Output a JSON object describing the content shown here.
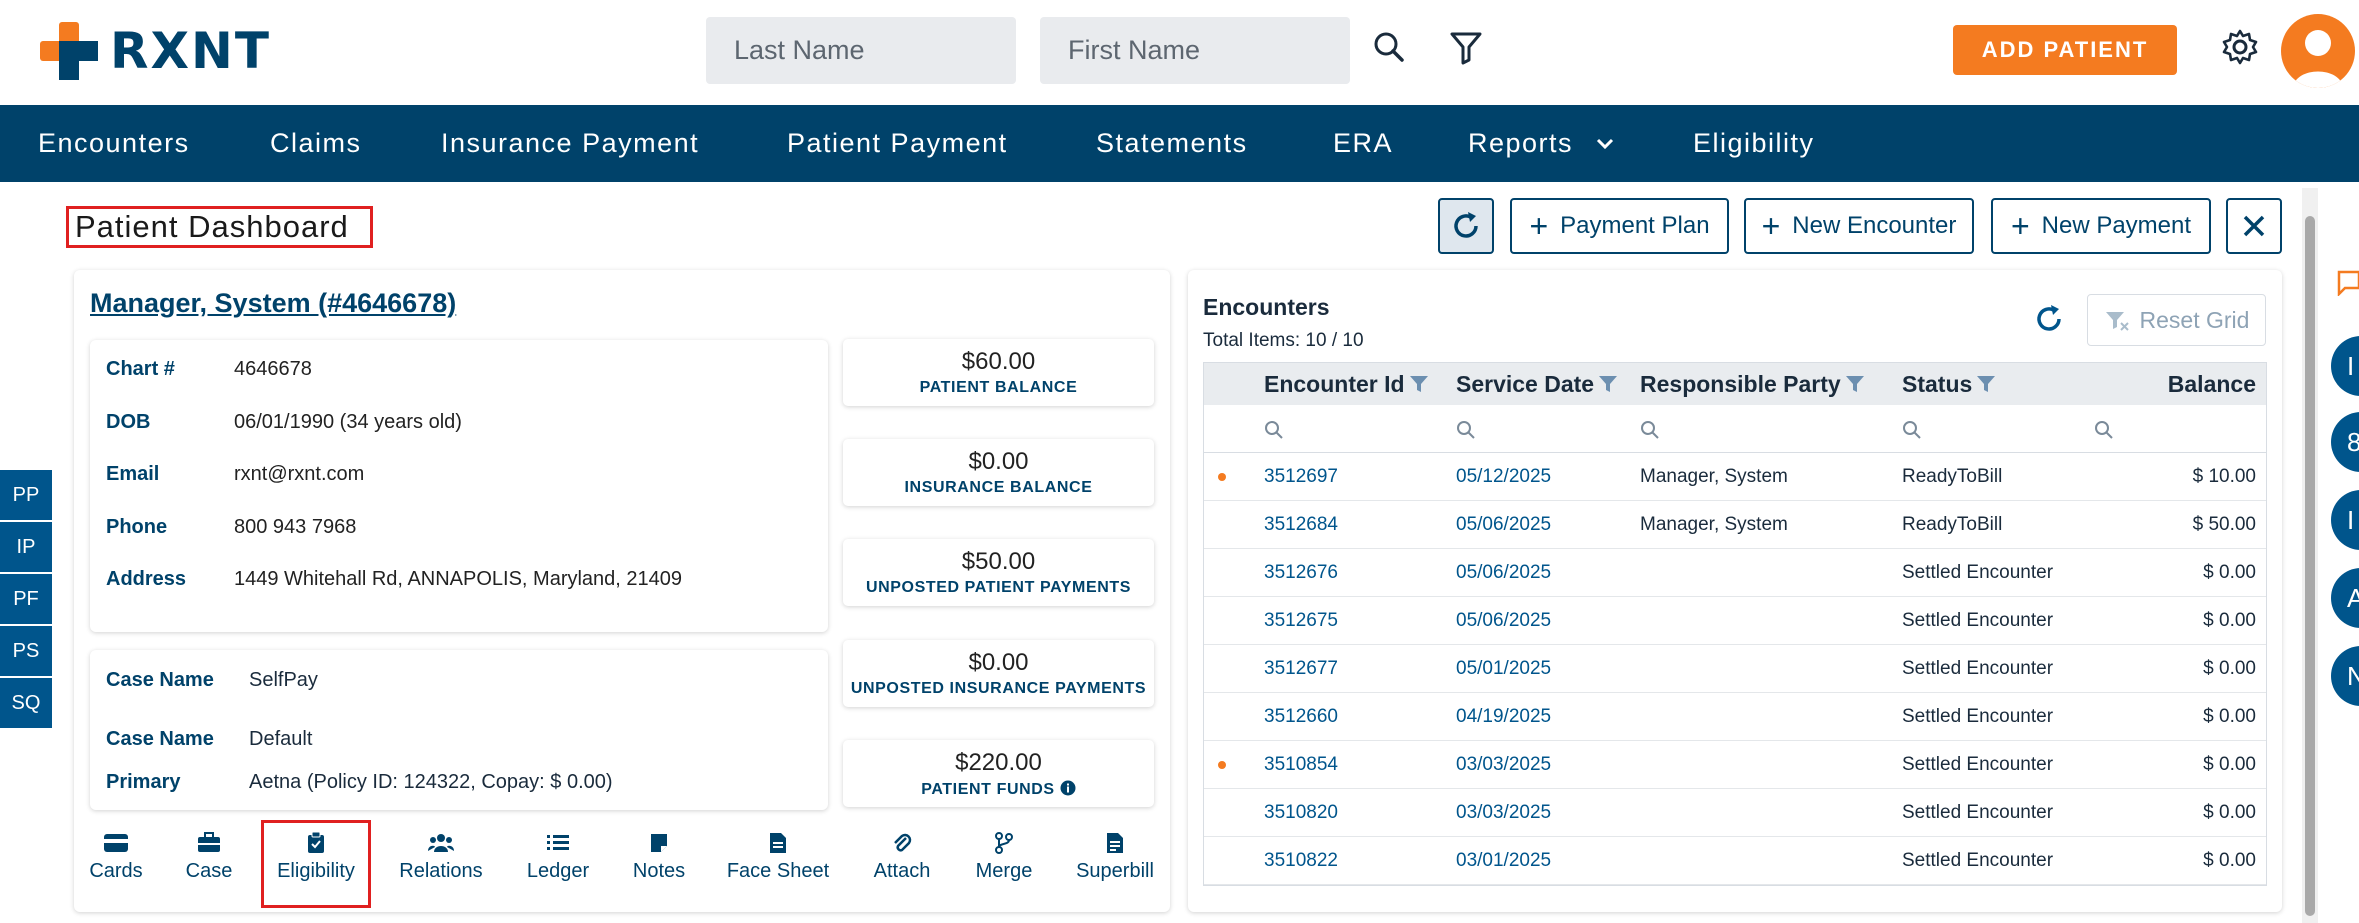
{
  "app": {
    "logo_text": "RXNT"
  },
  "header": {
    "last_name_placeholder": "Last Name",
    "first_name_placeholder": "First Name",
    "add_patient_label": "ADD PATIENT"
  },
  "nav": {
    "items": [
      "Encounters",
      "Claims",
      "Insurance Payment",
      "Patient Payment",
      "Statements",
      "ERA",
      "Reports",
      "Eligibility"
    ]
  },
  "page": {
    "title": "Patient Dashboard",
    "toolbar": {
      "payment_plan": "Payment Plan",
      "new_encounter": "New Encounter",
      "new_payment": "New Payment"
    }
  },
  "patient": {
    "name": "Manager, System (#4646678)",
    "fields": [
      {
        "label": "Chart #",
        "value": "4646678"
      },
      {
        "label": "DOB",
        "value": "06/01/1990 (34 years old)"
      },
      {
        "label": "Email",
        "value": "rxnt@rxnt.com"
      },
      {
        "label": "Phone",
        "value": "800 943 7968"
      },
      {
        "label": "Address",
        "value": "1449 Whitehall Rd, ANNAPOLIS, Maryland, 21409"
      }
    ],
    "cases": [
      {
        "label": "Case Name",
        "value": "SelfPay"
      },
      {
        "label": "Case Name",
        "value": "Default"
      },
      {
        "label": "Primary",
        "value": "Aetna (Policy ID: 124322, Copay: $ 0.00)"
      }
    ],
    "balances": [
      {
        "amount": "$60.00",
        "label": "PATIENT BALANCE"
      },
      {
        "amount": "$0.00",
        "label": "INSURANCE BALANCE"
      },
      {
        "amount": "$50.00",
        "label": "UNPOSTED PATIENT PAYMENTS"
      },
      {
        "amount": "$0.00",
        "label": "UNPOSTED INSURANCE PAYMENTS"
      },
      {
        "amount": "$220.00",
        "label": "PATIENT FUNDS"
      }
    ],
    "actions": [
      "Cards",
      "Case",
      "Eligibility",
      "Relations",
      "Ledger",
      "Notes",
      "Face Sheet",
      "Attach",
      "Merge",
      "Superbill"
    ]
  },
  "side_tabs": [
    "PP",
    "IP",
    "PF",
    "PS",
    "SQ"
  ],
  "encounters": {
    "title": "Encounters",
    "total": "Total Items: 10 / 10",
    "reset_grid": "Reset Grid",
    "columns": [
      "Encounter Id",
      "Service Date",
      "Responsible Party",
      "Status",
      "Balance"
    ],
    "rows": [
      {
        "flag": true,
        "id": "3512697",
        "date": "05/12/2025",
        "party": "Manager, System",
        "status": "ReadyToBill",
        "balance": "$ 10.00"
      },
      {
        "flag": false,
        "id": "3512684",
        "date": "05/06/2025",
        "party": "Manager, System",
        "status": "ReadyToBill",
        "balance": "$ 50.00"
      },
      {
        "flag": false,
        "id": "3512676",
        "date": "05/06/2025",
        "party": "",
        "status": "Settled Encounter",
        "balance": "$ 0.00"
      },
      {
        "flag": false,
        "id": "3512675",
        "date": "05/06/2025",
        "party": "",
        "status": "Settled Encounter",
        "balance": "$ 0.00"
      },
      {
        "flag": false,
        "id": "3512677",
        "date": "05/01/2025",
        "party": "",
        "status": "Settled Encounter",
        "balance": "$ 0.00"
      },
      {
        "flag": false,
        "id": "3512660",
        "date": "04/19/2025",
        "party": "",
        "status": "Settled Encounter",
        "balance": "$ 0.00"
      },
      {
        "flag": true,
        "id": "3510854",
        "date": "03/03/2025",
        "party": "",
        "status": "Settled Encounter",
        "balance": "$ 0.00"
      },
      {
        "flag": false,
        "id": "3510820",
        "date": "03/03/2025",
        "party": "",
        "status": "Settled Encounter",
        "balance": "$ 0.00"
      },
      {
        "flag": false,
        "id": "3510822",
        "date": "03/01/2025",
        "party": "",
        "status": "Settled Encounter",
        "balance": "$ 0.00"
      }
    ]
  },
  "right_panel": {
    "circles": [
      "I",
      "8",
      "I",
      "A",
      "N"
    ]
  },
  "colors": {
    "brand": "#00426a",
    "accent": "#f47b20",
    "link": "#00558c",
    "highlight": "#e02020"
  }
}
